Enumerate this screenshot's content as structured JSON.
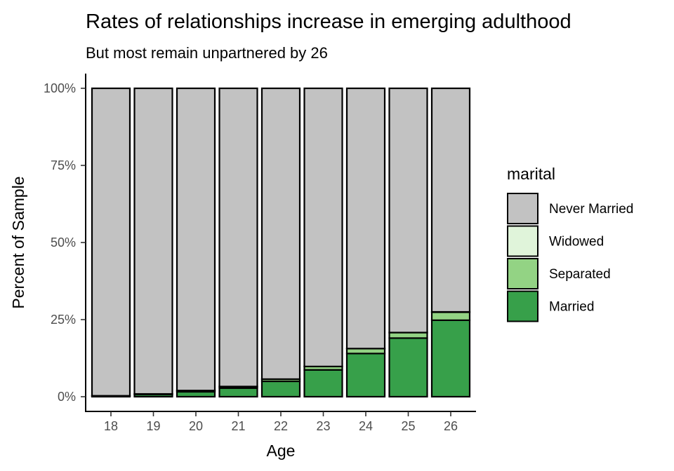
{
  "chart_data": {
    "type": "bar",
    "stacked": true,
    "title": "Rates of relationships increase in emerging adulthood",
    "subtitle": "But most remain unpartnered by 26",
    "xlabel": "Age",
    "ylabel": "Percent of Sample",
    "ylim": [
      0,
      100
    ],
    "yticks": [
      0,
      25,
      50,
      75,
      100
    ],
    "ytick_labels": [
      "0%",
      "25%",
      "50%",
      "75%",
      "100%"
    ],
    "categories": [
      "18",
      "19",
      "20",
      "21",
      "22",
      "23",
      "24",
      "25",
      "26"
    ],
    "series": [
      {
        "name": "Married",
        "color": "#37a04a",
        "values": [
          0.2,
          0.7,
          1.6,
          2.8,
          5.0,
          8.7,
          14.0,
          19.0,
          24.8
        ]
      },
      {
        "name": "Separated",
        "color": "#93d384",
        "values": [
          0.1,
          0.2,
          0.4,
          0.5,
          0.7,
          1.1,
          1.6,
          1.8,
          2.6
        ]
      },
      {
        "name": "Widowed",
        "color": "#e0f4da",
        "values": [
          0.0,
          0.0,
          0.0,
          0.0,
          0.0,
          0.0,
          0.0,
          0.0,
          0.1
        ]
      },
      {
        "name": "Never Married",
        "color": "#c2c2c2",
        "values": [
          99.7,
          99.1,
          98.0,
          96.7,
          94.3,
          90.2,
          84.4,
          79.2,
          72.5
        ]
      }
    ],
    "legend": {
      "title": "marital",
      "placement": "right",
      "order": [
        "Never Married",
        "Widowed",
        "Separated",
        "Married"
      ]
    },
    "grid": false
  }
}
